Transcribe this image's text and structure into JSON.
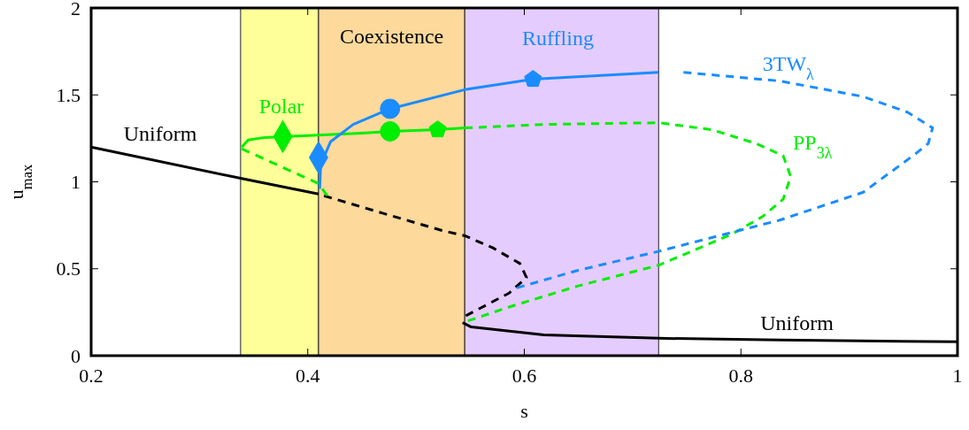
{
  "chart_data": {
    "type": "line",
    "xlabel": "s",
    "ylabel": "u$_{max}$",
    "xlim": [
      0.2,
      1
    ],
    "xticks": [
      0.2,
      0.4,
      0.6,
      0.8,
      1
    ],
    "ylim": [
      0,
      2
    ],
    "yticks": [
      0,
      0.5,
      1,
      1.5,
      2
    ],
    "grid": false,
    "bands": [
      {
        "axis": "x",
        "from": 0.338,
        "to": 0.41,
        "color": "#ffff99"
      },
      {
        "axis": "x",
        "from": 0.41,
        "to": 0.545,
        "color": "#fdd99b",
        "label": "Coexistence"
      },
      {
        "axis": "x",
        "from": 0.545,
        "to": 0.724,
        "color": "#e5ccff"
      }
    ],
    "series": [
      {
        "color": "#000000",
        "line_style": "solid",
        "x": [
          0.2,
          0.338,
          0.41
        ],
        "values": [
          1.2,
          1.02,
          0.93
        ]
      },
      {
        "color": "#000000",
        "line_style": "dashed",
        "x": [
          0.415,
          0.469,
          0.524,
          0.545,
          0.571,
          0.596,
          0.602,
          0.586,
          0.546
        ],
        "values": [
          0.92,
          0.82,
          0.72,
          0.69,
          0.62,
          0.53,
          0.45,
          0.36,
          0.23
        ]
      },
      {
        "color": "#000000",
        "line_style": "solid",
        "x": [
          0.543,
          0.551,
          0.618,
          0.724,
          0.836,
          1
        ],
        "values": [
          0.19,
          0.165,
          0.12,
          0.1,
          0.09,
          0.08
        ]
      },
      {
        "color": "#00ee00",
        "line_style": "solid",
        "x": [
          0.339,
          0.345,
          0.36,
          0.377,
          0.45,
          0.476,
          0.52,
          0.545
        ],
        "values": [
          1.2,
          1.24,
          1.255,
          1.26,
          1.28,
          1.29,
          1.3,
          1.31
        ]
      },
      {
        "color": "#00ee00",
        "line_style": "dashed",
        "x": [
          0.339,
          0.41,
          0.418
        ],
        "values": [
          1.19,
          0.99,
          0.92
        ]
      },
      {
        "color": "#00ee00",
        "line_style": "dashed",
        "x": [
          0.545,
          0.618,
          0.724,
          0.773,
          0.814,
          0.839,
          0.846,
          0.839,
          0.82,
          0.792,
          0.724,
          0.649,
          0.586,
          0.548
        ],
        "values": [
          1.31,
          1.33,
          1.34,
          1.3,
          1.22,
          1.15,
          1.03,
          0.9,
          0.8,
          0.7,
          0.52,
          0.4,
          0.28,
          0.2
        ]
      },
      {
        "color": "#1a8cff",
        "line_style": "solid",
        "x": [
          0.411,
          0.412,
          0.421,
          0.442,
          0.476,
          0.545,
          0.608,
          0.724
        ],
        "values": [
          0.96,
          1.1,
          1.23,
          1.33,
          1.42,
          1.53,
          1.59,
          1.63
        ]
      },
      {
        "color": "#1a8cff",
        "line_style": "dashed",
        "x": [
          0.747,
          0.836,
          0.913,
          0.954,
          0.977,
          0.973,
          0.961,
          0.913,
          0.836,
          0.724,
          0.649,
          0.593
        ],
        "values": [
          1.63,
          1.58,
          1.49,
          1.4,
          1.31,
          1.22,
          1.16,
          0.94,
          0.78,
          0.6,
          0.49,
          0.39
        ]
      },
      {
        "type": "scatter",
        "color": "#00ee00",
        "marker": "diamond",
        "x": [
          0.377
        ],
        "values": [
          1.26
        ]
      },
      {
        "type": "scatter",
        "color": "#00ee00",
        "marker": "circle",
        "x": [
          0.476
        ],
        "values": [
          1.29
        ]
      },
      {
        "type": "scatter",
        "color": "#00ee00",
        "x": [
          0.52
        ],
        "values": [
          1.3
        ]
      },
      {
        "type": "scatter",
        "color": "#1a8cff",
        "marker": "diamond",
        "x": [
          0.41
        ],
        "values": [
          1.14
        ]
      },
      {
        "type": "scatter",
        "color": "#1a8cff",
        "marker": "circle",
        "x": [
          0.476
        ],
        "values": [
          1.42
        ]
      },
      {
        "type": "scatter",
        "color": "#1a8cff",
        "x": [
          0.608
        ],
        "values": [
          1.59
        ]
      }
    ],
    "annotations": [
      "Uniform",
      "Polar",
      "Ruffling",
      "3TW$_{λ}$",
      "PP$_{3λ}$",
      "Uniform"
    ]
  }
}
